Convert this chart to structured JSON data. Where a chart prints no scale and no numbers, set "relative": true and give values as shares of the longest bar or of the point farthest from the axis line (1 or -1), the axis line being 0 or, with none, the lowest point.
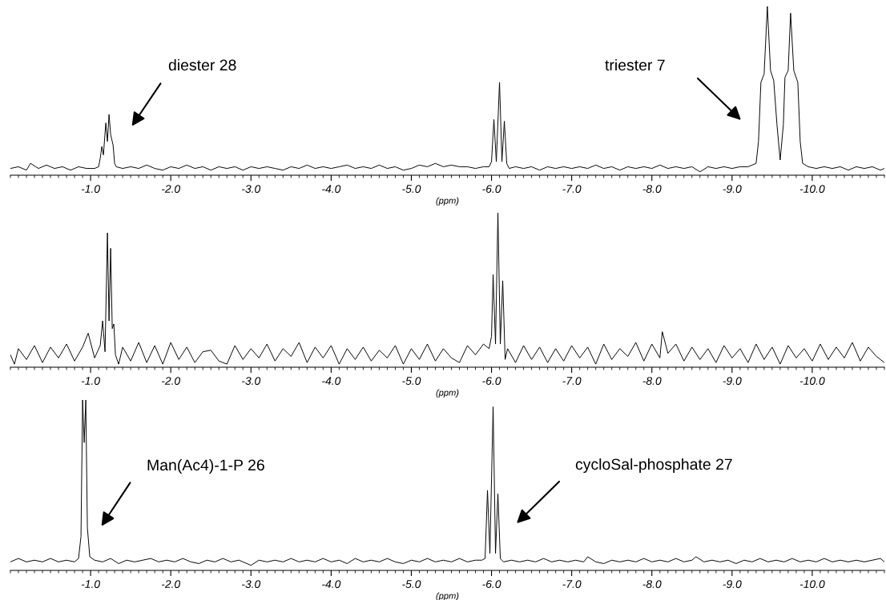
{
  "chart_data": [
    {
      "type": "line",
      "relative": true,
      "xlabel": "(ppm)",
      "xlim": [
        0,
        -10.9
      ],
      "xticks": [
        {
          "value": -1,
          "label": "-1.0"
        },
        {
          "value": -2,
          "label": "-2.0"
        },
        {
          "value": -3,
          "label": "-3.0"
        },
        {
          "value": -4,
          "label": "-4.0"
        },
        {
          "value": -5,
          "label": "-5.0"
        },
        {
          "value": -6,
          "label": "-6.0"
        },
        {
          "value": -7,
          "label": "-7.0"
        },
        {
          "value": -8,
          "label": "-8.0"
        },
        {
          "value": -9,
          "label": "-9.0"
        },
        {
          "value": -10,
          "label": "-10.0"
        }
      ],
      "tick_labels": "x",
      "marker": "none",
      "line_style": "solid",
      "annotations": [
        "diester 28",
        "triester 7"
      ],
      "series": [
        {
          "color": "#000000",
          "x": [
            0.0,
            -0.1,
            -0.2,
            -0.25,
            -0.35,
            -0.45,
            -0.55,
            -0.65,
            -0.75,
            -0.85,
            -0.95,
            -1.05,
            -1.1,
            -1.12,
            -1.14,
            -1.16,
            -1.19,
            -1.21,
            -1.23,
            -1.25,
            -1.28,
            -1.3,
            -1.32,
            -1.4,
            -1.5,
            -1.6,
            -1.7,
            -1.8,
            -1.9,
            -2.0,
            -2.1,
            -2.2,
            -2.3,
            -2.4,
            -2.5,
            -2.6,
            -2.7,
            -2.8,
            -2.9,
            -3.0,
            -3.1,
            -3.2,
            -3.3,
            -3.4,
            -3.5,
            -3.6,
            -3.7,
            -3.8,
            -3.9,
            -4.0,
            -4.1,
            -4.2,
            -4.3,
            -4.4,
            -4.5,
            -4.6,
            -4.7,
            -4.8,
            -4.9,
            -5.0,
            -5.1,
            -5.2,
            -5.3,
            -5.4,
            -5.5,
            -5.6,
            -5.7,
            -5.8,
            -5.9,
            -5.97,
            -6.0,
            -6.03,
            -6.06,
            -6.1,
            -6.13,
            -6.16,
            -6.19,
            -6.22,
            -6.3,
            -6.4,
            -6.5,
            -6.6,
            -6.7,
            -6.8,
            -6.9,
            -7.0,
            -7.1,
            -7.2,
            -7.3,
            -7.4,
            -7.5,
            -7.6,
            -7.7,
            -7.8,
            -7.9,
            -8.0,
            -8.1,
            -8.2,
            -8.3,
            -8.4,
            -8.5,
            -8.6,
            -8.7,
            -8.8,
            -8.9,
            -9.0,
            -9.1,
            -9.2,
            -9.3,
            -9.33,
            -9.36,
            -9.4,
            -9.44,
            -9.48,
            -9.52,
            -9.56,
            -9.6,
            -9.64,
            -9.66,
            -9.7,
            -9.73,
            -9.77,
            -9.82,
            -9.85,
            -9.88,
            -9.95,
            -10.05,
            -10.15,
            -10.25,
            -10.35,
            -10.45,
            -10.55,
            -10.65,
            -10.75,
            -10.85,
            -10.9
          ],
          "values": [
            0.04,
            0.05,
            0.03,
            0.07,
            0.04,
            0.06,
            0.04,
            0.05,
            0.03,
            0.05,
            0.04,
            0.04,
            0.05,
            0.1,
            0.17,
            0.12,
            0.31,
            0.2,
            0.36,
            0.24,
            0.18,
            0.07,
            0.05,
            0.04,
            0.05,
            0.04,
            0.06,
            0.04,
            0.03,
            0.05,
            0.04,
            0.06,
            0.04,
            0.05,
            0.03,
            0.05,
            0.04,
            0.05,
            0.03,
            0.05,
            0.04,
            0.05,
            0.04,
            0.03,
            0.05,
            0.04,
            0.06,
            0.04,
            0.05,
            0.04,
            0.05,
            0.06,
            0.04,
            0.05,
            0.04,
            0.06,
            0.04,
            0.05,
            0.03,
            0.04,
            0.06,
            0.05,
            0.07,
            0.05,
            0.06,
            0.05,
            0.05,
            0.04,
            0.05,
            0.05,
            0.08,
            0.33,
            0.08,
            0.55,
            0.08,
            0.32,
            0.07,
            0.04,
            0.05,
            0.04,
            0.05,
            0.03,
            0.05,
            0.04,
            0.05,
            0.04,
            0.05,
            0.04,
            0.06,
            0.04,
            0.05,
            0.03,
            0.05,
            0.04,
            0.05,
            0.04,
            0.06,
            0.04,
            0.05,
            0.04,
            0.05,
            0.02,
            0.05,
            0.04,
            0.05,
            0.04,
            0.05,
            0.05,
            0.07,
            0.2,
            0.55,
            0.6,
            1.0,
            0.62,
            0.56,
            0.3,
            0.09,
            0.3,
            0.58,
            0.62,
            0.96,
            0.62,
            0.55,
            0.2,
            0.07,
            0.05,
            0.04,
            0.05,
            0.04,
            0.05,
            0.03,
            0.05,
            0.04,
            0.05,
            0.03,
            0.04
          ]
        }
      ]
    },
    {
      "type": "line",
      "relative": true,
      "xlabel": "(ppm)",
      "xlim": [
        0,
        -10.9
      ],
      "xticks": [
        {
          "value": -1,
          "label": "-1.0"
        },
        {
          "value": -2,
          "label": "-2.0"
        },
        {
          "value": -3,
          "label": "-3.0"
        },
        {
          "value": -4,
          "label": "-4.0"
        },
        {
          "value": -5,
          "label": "-5.0"
        },
        {
          "value": -6,
          "label": "-6.0"
        },
        {
          "value": -7,
          "label": "-7.0"
        },
        {
          "value": -8,
          "label": "-8.0"
        },
        {
          "value": -9,
          "label": "-9.0"
        },
        {
          "value": -10,
          "label": "-10.0"
        }
      ],
      "tick_labels": "x",
      "marker": "none",
      "line_style": "solid",
      "series": [
        {
          "color": "#000000",
          "x": [
            0.0,
            -0.05,
            -0.1,
            -0.2,
            -0.3,
            -0.4,
            -0.5,
            -0.6,
            -0.7,
            -0.8,
            -0.9,
            -0.97,
            -1.05,
            -1.12,
            -1.15,
            -1.18,
            -1.21,
            -1.23,
            -1.25,
            -1.27,
            -1.29,
            -1.31,
            -1.35,
            -1.4,
            -1.5,
            -1.6,
            -1.7,
            -1.8,
            -1.9,
            -2.0,
            -2.1,
            -2.2,
            -2.3,
            -2.4,
            -2.5,
            -2.6,
            -2.7,
            -2.8,
            -2.9,
            -3.0,
            -3.1,
            -3.2,
            -3.3,
            -3.4,
            -3.5,
            -3.6,
            -3.7,
            -3.8,
            -3.9,
            -4.0,
            -4.1,
            -4.2,
            -4.3,
            -4.4,
            -4.5,
            -4.6,
            -4.7,
            -4.8,
            -4.9,
            -5.0,
            -5.1,
            -5.2,
            -5.3,
            -5.4,
            -5.5,
            -5.6,
            -5.7,
            -5.8,
            -5.9,
            -5.97,
            -6.0,
            -6.02,
            -6.05,
            -6.08,
            -6.11,
            -6.14,
            -6.17,
            -6.2,
            -6.3,
            -6.4,
            -6.5,
            -6.6,
            -6.7,
            -6.8,
            -6.9,
            -7.0,
            -7.1,
            -7.2,
            -7.3,
            -7.4,
            -7.5,
            -7.6,
            -7.7,
            -7.8,
            -7.9,
            -8.0,
            -8.1,
            -8.13,
            -8.2,
            -8.3,
            -8.4,
            -8.5,
            -8.6,
            -8.7,
            -8.8,
            -8.9,
            -9.0,
            -9.1,
            -9.2,
            -9.3,
            -9.4,
            -9.5,
            -9.6,
            -9.7,
            -9.8,
            -9.9,
            -10.0,
            -10.1,
            -10.2,
            -10.3,
            -10.4,
            -10.5,
            -10.6,
            -10.7,
            -10.8,
            -10.9
          ],
          "values": [
            0.08,
            0.02,
            0.12,
            0.05,
            0.14,
            0.03,
            0.13,
            0.06,
            0.15,
            0.04,
            0.13,
            0.22,
            0.06,
            0.14,
            0.3,
            0.1,
            0.87,
            0.3,
            0.77,
            0.25,
            0.28,
            0.08,
            0.02,
            0.13,
            0.04,
            0.16,
            0.03,
            0.14,
            0.02,
            0.16,
            0.05,
            0.13,
            0.03,
            0.1,
            0.11,
            0.04,
            0.02,
            0.14,
            0.05,
            0.12,
            0.06,
            0.15,
            0.04,
            0.12,
            0.07,
            0.16,
            0.03,
            0.13,
            0.06,
            0.14,
            0.02,
            0.12,
            0.05,
            0.13,
            0.04,
            0.11,
            0.06,
            0.14,
            0.02,
            0.12,
            0.05,
            0.15,
            0.04,
            0.12,
            0.06,
            0.03,
            0.14,
            0.08,
            0.15,
            0.12,
            0.2,
            0.6,
            0.15,
            1.0,
            0.15,
            0.56,
            0.05,
            0.12,
            0.03,
            0.14,
            0.05,
            0.13,
            0.03,
            0.12,
            0.04,
            0.14,
            0.06,
            0.13,
            0.02,
            0.15,
            0.05,
            0.12,
            0.07,
            0.16,
            0.04,
            0.15,
            0.06,
            0.23,
            0.09,
            0.15,
            0.04,
            0.13,
            0.05,
            0.12,
            0.03,
            0.14,
            0.06,
            0.12,
            0.03,
            0.15,
            0.05,
            0.13,
            0.02,
            0.14,
            0.06,
            0.12,
            0.04,
            0.15,
            0.05,
            0.13,
            0.06,
            0.16,
            0.04,
            0.13,
            0.07,
            0.03
          ]
        }
      ]
    },
    {
      "type": "line",
      "relative": true,
      "xlabel": "(ppm)",
      "xlim": [
        0,
        -10.9
      ],
      "xticks": [
        {
          "value": -1,
          "label": "-1.0"
        },
        {
          "value": -2,
          "label": "-2.0"
        },
        {
          "value": -3,
          "label": "-3.0"
        },
        {
          "value": -4,
          "label": "-4.0"
        },
        {
          "value": -5,
          "label": "-5.0"
        },
        {
          "value": -6,
          "label": "-6.0"
        },
        {
          "value": -7,
          "label": "-7.0"
        },
        {
          "value": -8,
          "label": "-8.0"
        },
        {
          "value": -9,
          "label": "-9.0"
        },
        {
          "value": -10,
          "label": "-10.0"
        }
      ],
      "tick_labels": "x",
      "marker": "none",
      "line_style": "solid",
      "annotations": [
        "Man(Ac4)-1-P 26",
        "cycloSal-phosphate 27"
      ],
      "series": [
        {
          "color": "#000000",
          "x": [
            0.0,
            -0.1,
            -0.2,
            -0.3,
            -0.4,
            -0.5,
            -0.6,
            -0.7,
            -0.8,
            -0.85,
            -0.88,
            -0.9,
            -0.92,
            -0.94,
            -0.96,
            -0.99,
            -1.05,
            -1.15,
            -1.25,
            -1.35,
            -1.45,
            -1.55,
            -1.65,
            -1.75,
            -1.85,
            -1.95,
            -2.05,
            -2.15,
            -2.25,
            -2.35,
            -2.45,
            -2.55,
            -2.65,
            -2.75,
            -2.85,
            -3.0,
            -3.1,
            -3.2,
            -3.3,
            -3.4,
            -3.5,
            -3.6,
            -3.7,
            -3.8,
            -3.9,
            -4.0,
            -4.1,
            -4.2,
            -4.3,
            -4.4,
            -4.5,
            -4.6,
            -4.7,
            -4.8,
            -4.9,
            -5.0,
            -5.1,
            -5.2,
            -5.3,
            -5.4,
            -5.5,
            -5.6,
            -5.7,
            -5.8,
            -5.88,
            -5.92,
            -5.95,
            -5.98,
            -6.02,
            -6.05,
            -6.08,
            -6.11,
            -6.15,
            -6.25,
            -6.35,
            -6.45,
            -6.55,
            -6.65,
            -6.75,
            -6.85,
            -6.95,
            -7.05,
            -7.15,
            -7.2,
            -7.3,
            -7.4,
            -7.5,
            -7.6,
            -7.7,
            -7.8,
            -7.9,
            -8.0,
            -8.1,
            -8.2,
            -8.3,
            -8.4,
            -8.5,
            -8.55,
            -8.65,
            -8.75,
            -8.85,
            -8.95,
            -9.05,
            -9.15,
            -9.25,
            -9.35,
            -9.45,
            -9.55,
            -9.65,
            -9.75,
            -9.85,
            -9.95,
            -10.05,
            -10.15,
            -10.25,
            -10.35,
            -10.45,
            -10.55,
            -10.65,
            -10.75,
            -10.85,
            -10.9
          ],
          "values": [
            0.05,
            0.07,
            0.05,
            0.06,
            0.05,
            0.07,
            0.05,
            0.06,
            0.05,
            0.07,
            0.2,
            1.0,
            0.75,
            1.0,
            0.25,
            0.08,
            0.06,
            0.05,
            0.07,
            0.04,
            0.06,
            0.05,
            0.06,
            0.07,
            0.05,
            0.06,
            0.05,
            0.07,
            0.05,
            0.04,
            0.06,
            0.05,
            0.07,
            0.05,
            0.06,
            0.03,
            0.06,
            0.05,
            0.06,
            0.05,
            0.07,
            0.05,
            0.06,
            0.05,
            0.07,
            0.05,
            0.06,
            0.04,
            0.07,
            0.05,
            0.06,
            0.05,
            0.07,
            0.05,
            0.04,
            0.06,
            0.05,
            0.07,
            0.05,
            0.06,
            0.05,
            0.07,
            0.05,
            0.06,
            0.06,
            0.07,
            0.47,
            0.1,
            0.96,
            0.1,
            0.45,
            0.07,
            0.05,
            0.06,
            0.05,
            0.06,
            0.05,
            0.07,
            0.05,
            0.06,
            0.05,
            0.06,
            0.05,
            0.08,
            0.05,
            0.04,
            0.06,
            0.05,
            0.06,
            0.05,
            0.07,
            0.05,
            0.06,
            0.05,
            0.07,
            0.05,
            0.06,
            0.08,
            0.05,
            0.06,
            0.05,
            0.06,
            0.04,
            0.06,
            0.05,
            0.07,
            0.05,
            0.06,
            0.05,
            0.07,
            0.05,
            0.06,
            0.05,
            0.07,
            0.05,
            0.06,
            0.05,
            0.06,
            0.05,
            0.06,
            0.07,
            0.05
          ]
        }
      ]
    }
  ]
}
